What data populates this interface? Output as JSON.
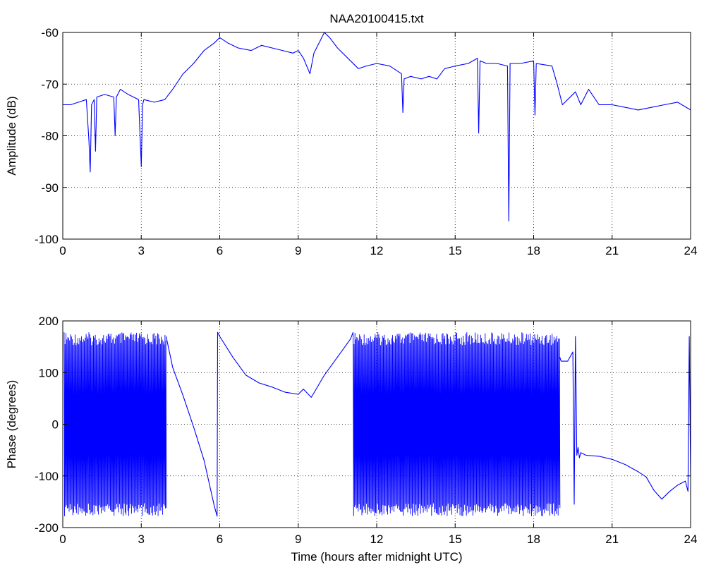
{
  "chart_data": [
    {
      "type": "line",
      "title": "NAA20100415.txt",
      "xlabel": "",
      "ylabel": "Amplitude (dB)",
      "xlim": [
        0,
        24
      ],
      "ylim": [
        -100,
        -60
      ],
      "xticks": [
        0,
        3,
        6,
        9,
        12,
        15,
        18,
        21,
        24
      ],
      "yticks": [
        -100,
        -90,
        -80,
        -70,
        -60
      ],
      "grid": true,
      "line_color": "#0000ff",
      "series": [
        {
          "x": [
            0,
            0.3,
            0.6,
            0.9,
            1.0,
            1.05,
            1.1,
            1.2,
            1.25,
            1.3,
            1.6,
            1.95,
            2.0,
            2.05,
            2.2,
            2.5,
            2.9,
            3.0,
            3.05,
            3.1,
            3.5,
            3.9,
            4.2,
            4.6,
            5.0,
            5.4,
            5.8,
            6.0,
            6.3,
            6.7,
            7.2,
            7.6,
            8.0,
            8.4,
            8.8,
            9.0,
            9.2,
            9.45,
            9.6,
            9.8,
            10.0,
            10.2,
            10.5,
            11.0,
            11.3,
            11.6,
            12.0,
            12.5,
            12.95,
            13.0,
            13.05,
            13.3,
            13.7,
            14.0,
            14.3,
            14.6,
            15.0,
            15.5,
            15.85,
            15.9,
            15.95,
            16.2,
            16.6,
            17.0,
            17.05,
            17.1,
            17.5,
            18.0,
            18.05,
            18.1,
            18.7,
            18.9,
            19.1,
            19.3,
            19.6,
            19.8,
            20.1,
            20.5,
            21.0,
            21.5,
            22.0,
            22.5,
            23.0,
            23.5,
            24.0
          ],
          "y": [
            -74,
            -74,
            -73.5,
            -73,
            -81,
            -87,
            -74,
            -73,
            -83,
            -72.5,
            -72,
            -72.5,
            -80,
            -72.5,
            -71,
            -72,
            -73,
            -86,
            -74,
            -73,
            -73.5,
            -73,
            -71,
            -68,
            -66,
            -63.5,
            -62,
            -61,
            -62,
            -63,
            -63.5,
            -62.5,
            -63,
            -63.5,
            -64,
            -63.5,
            -65,
            -68,
            -64,
            -62,
            -60,
            -61,
            -63,
            -65.5,
            -67,
            -66.5,
            -66,
            -66.5,
            -68,
            -75.5,
            -69,
            -68.5,
            -69,
            -68.5,
            -69,
            -67,
            -66.5,
            -66,
            -65,
            -79.5,
            -65.5,
            -66,
            -66,
            -66.5,
            -96.5,
            -66,
            -66,
            -65.5,
            -76,
            -66,
            -66.5,
            -70,
            -74,
            -73,
            -71.5,
            -74,
            -71,
            -74,
            -74,
            -74.5,
            -75,
            -74.5,
            -74,
            -73.5,
            -75
          ]
        }
      ]
    },
    {
      "type": "line",
      "title": "",
      "xlabel": "Time (hours after midnight UTC)",
      "ylabel": "Phase (degrees)",
      "xlim": [
        0,
        24
      ],
      "ylim": [
        -200,
        200
      ],
      "xticks": [
        0,
        3,
        6,
        9,
        12,
        15,
        18,
        21,
        24
      ],
      "yticks": [
        -200,
        -100,
        0,
        100,
        200
      ],
      "grid": true,
      "line_color": "#0000ff",
      "bands": [
        {
          "x_start": 0.05,
          "x_end": 3.95,
          "y_min": -178,
          "y_max": 178
        },
        {
          "x_start": 11.1,
          "x_end": 19.0,
          "y_min": -178,
          "y_max": 178
        }
      ],
      "series": [
        {
          "x": [
            3.95,
            4.2,
            4.6,
            5.0,
            5.4,
            5.8,
            5.9,
            5.92,
            6.0,
            6.5,
            7.0,
            7.5,
            8.0,
            8.5,
            9.0,
            9.2,
            9.5,
            10.0,
            10.5,
            11.0,
            11.1
          ],
          "y": [
            170,
            110,
            55,
            -5,
            -70,
            -160,
            -178,
            178,
            170,
            130,
            95,
            80,
            72,
            62,
            58,
            68,
            52,
            95,
            130,
            165,
            178
          ]
        },
        {
          "x": [
            19.0,
            19.05,
            19.3,
            19.5,
            19.55,
            19.6,
            19.65,
            19.7,
            19.75,
            19.8,
            20.0,
            20.5,
            21.0,
            21.5,
            22.0,
            22.3,
            22.6,
            22.9,
            23.2,
            23.5,
            23.8,
            23.9,
            23.95,
            24.0
          ],
          "y": [
            130,
            122,
            122,
            140,
            -155,
            170,
            -60,
            -45,
            -65,
            -55,
            -60,
            -62,
            -68,
            -78,
            -92,
            -102,
            -128,
            -145,
            -130,
            -118,
            -110,
            -130,
            170,
            -100
          ]
        }
      ]
    }
  ]
}
